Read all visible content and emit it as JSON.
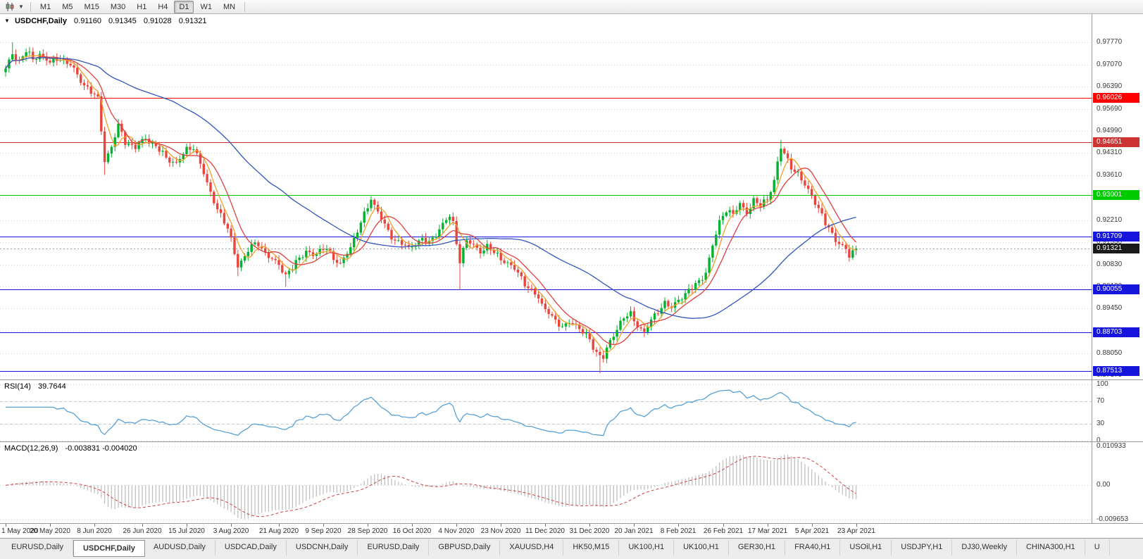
{
  "toolbar": {
    "timeframes": [
      "M1",
      "M5",
      "M15",
      "M30",
      "H1",
      "H4",
      "D1",
      "W1",
      "MN"
    ],
    "active_timeframe": "D1",
    "chart_menu_icon": "candlestick-chart-icon"
  },
  "chart": {
    "collapse_marker": "▼",
    "symbol_label": "USDCHF,Daily",
    "ohlc": {
      "open": "0.91160",
      "high": "0.91345",
      "low": "0.91028",
      "close": "0.91321"
    }
  },
  "rsi": {
    "label": "RSI(14)",
    "value": "39.7644",
    "period": 14,
    "levels": [
      100,
      70,
      30,
      0
    ]
  },
  "macd": {
    "label": "MACD(12,26,9)",
    "value": "-0.003831 -0.004020",
    "fast": 12,
    "slow": 26,
    "signal": 9,
    "scale_max": 0.010933,
    "scale_min": -0.009653,
    "scale_labels": [
      "0.010933",
      "0.00",
      "-0.009653"
    ]
  },
  "tabs": {
    "active_index": 1,
    "items": [
      "EURUSD,Daily",
      "USDCHF,Daily",
      "AUDUSD,Daily",
      "USDCAD,Daily",
      "USDCNH,Daily",
      "EURUSD,Daily",
      "GBPUSD,Daily",
      "XAUUSD,H4",
      "HK50,M15",
      "UK100,H1",
      "UK100,H1",
      "GER30,H1",
      "FRA40,H1",
      "USOil,H1",
      "USDJPY,H1",
      "DJ30,Weekly",
      "CHINA300,H1",
      "U"
    ]
  },
  "chart_data": {
    "type": "candlestick",
    "symbol": "USDCHF",
    "timeframe": "Daily",
    "candle_count": 250,
    "current_price": 0.91321,
    "current_price_label": "0.91321",
    "y_axis_ticks": [
      "0.97770",
      "0.97070",
      "0.96390",
      "0.95690",
      "0.94990",
      "0.94310",
      "0.93610",
      "0.92910",
      "0.92210",
      "0.91530",
      "0.90830",
      "0.90130",
      "0.89450",
      "0.88750",
      "0.88050",
      "0.87370"
    ],
    "horizontal_lines": [
      {
        "price": 0.96026,
        "label": "0.96026",
        "color": "#FF0000"
      },
      {
        "price": 0.94651,
        "label": "0.94651",
        "color": "#CD3333"
      },
      {
        "price": 0.93001,
        "label": "0.93001",
        "color": "#00CC00"
      },
      {
        "price": 0.91709,
        "label": "0.91709",
        "color": "#1515DD"
      },
      {
        "price": 0.90055,
        "label": "0.90055",
        "color": "#1515DD"
      },
      {
        "price": 0.88703,
        "label": "0.88703",
        "color": "#1515DD"
      },
      {
        "price": 0.87513,
        "label": "0.87513",
        "color": "#1515DD"
      }
    ],
    "x_labels": [
      {
        "i": 0,
        "label": "1 May 2020"
      },
      {
        "i": 13,
        "label": "20 May 2020"
      },
      {
        "i": 26,
        "label": "8 Jun 2020"
      },
      {
        "i": 40,
        "label": "26 Jun 2020"
      },
      {
        "i": 53,
        "label": "15 Jul 2020"
      },
      {
        "i": 66,
        "label": "3 Aug 2020"
      },
      {
        "i": 80,
        "label": "21 Aug 2020"
      },
      {
        "i": 93,
        "label": "9 Sep 2020"
      },
      {
        "i": 106,
        "label": "28 Sep 2020"
      },
      {
        "i": 119,
        "label": "16 Oct 2020"
      },
      {
        "i": 132,
        "label": "4 Nov 2020"
      },
      {
        "i": 145,
        "label": "23 Nov 2020"
      },
      {
        "i": 158,
        "label": "11 Dec 2020"
      },
      {
        "i": 171,
        "label": "31 Dec 2020"
      },
      {
        "i": 184,
        "label": "20 Jan 2021"
      },
      {
        "i": 197,
        "label": "8 Feb 2021"
      },
      {
        "i": 210,
        "label": "26 Feb 2021"
      },
      {
        "i": 223,
        "label": "17 Mar 2021"
      },
      {
        "i": 236,
        "label": "5 Apr 2021"
      },
      {
        "i": 249,
        "label": "23 Apr 2021"
      }
    ],
    "price_path": [
      [
        0,
        0.969
      ],
      [
        2,
        0.9742
      ],
      [
        4,
        0.9718
      ],
      [
        6,
        0.975
      ],
      [
        8,
        0.9722
      ],
      [
        10,
        0.9742
      ],
      [
        13,
        0.9712
      ],
      [
        16,
        0.973
      ],
      [
        19,
        0.9705
      ],
      [
        22,
        0.9658
      ],
      [
        25,
        0.9622
      ],
      [
        27,
        0.9598
      ],
      [
        28,
        0.9505
      ],
      [
        29,
        0.9408
      ],
      [
        31,
        0.945
      ],
      [
        33,
        0.9515
      ],
      [
        35,
        0.9468
      ],
      [
        38,
        0.9448
      ],
      [
        41,
        0.9478
      ],
      [
        44,
        0.9452
      ],
      [
        47,
        0.9415
      ],
      [
        50,
        0.94
      ],
      [
        53,
        0.944
      ],
      [
        55,
        0.9452
      ],
      [
        57,
        0.94
      ],
      [
        59,
        0.9332
      ],
      [
        61,
        0.9282
      ],
      [
        63,
        0.9238
      ],
      [
        65,
        0.9192
      ],
      [
        67,
        0.9122
      ],
      [
        68,
        0.908
      ],
      [
        70,
        0.9108
      ],
      [
        72,
        0.914
      ],
      [
        74,
        0.9152
      ],
      [
        76,
        0.9118
      ],
      [
        78,
        0.9096
      ],
      [
        80,
        0.9084
      ],
      [
        82,
        0.905
      ],
      [
        84,
        0.9072
      ],
      [
        86,
        0.9102
      ],
      [
        88,
        0.9128
      ],
      [
        90,
        0.911
      ],
      [
        92,
        0.9122
      ],
      [
        94,
        0.9142
      ],
      [
        96,
        0.9098
      ],
      [
        98,
        0.908
      ],
      [
        100,
        0.9124
      ],
      [
        102,
        0.916
      ],
      [
        104,
        0.9212
      ],
      [
        106,
        0.9265
      ],
      [
        107,
        0.9292
      ],
      [
        108,
        0.9268
      ],
      [
        110,
        0.9225
      ],
      [
        112,
        0.9185
      ],
      [
        114,
        0.916
      ],
      [
        116,
        0.9148
      ],
      [
        118,
        0.9132
      ],
      [
        120,
        0.915
      ],
      [
        122,
        0.9162
      ],
      [
        124,
        0.9148
      ],
      [
        126,
        0.918
      ],
      [
        128,
        0.921
      ],
      [
        130,
        0.9232
      ],
      [
        131,
        0.921
      ],
      [
        132,
        0.915
      ],
      [
        133,
        0.9098
      ],
      [
        134,
        0.913
      ],
      [
        135,
        0.9158
      ],
      [
        137,
        0.914
      ],
      [
        139,
        0.9125
      ],
      [
        141,
        0.914
      ],
      [
        143,
        0.9118
      ],
      [
        145,
        0.9102
      ],
      [
        147,
        0.9088
      ],
      [
        149,
        0.9068
      ],
      [
        151,
        0.904
      ],
      [
        153,
        0.9012
      ],
      [
        155,
        0.8992
      ],
      [
        157,
        0.8955
      ],
      [
        159,
        0.8938
      ],
      [
        161,
        0.8905
      ],
      [
        163,
        0.8882
      ],
      [
        165,
        0.891
      ],
      [
        167,
        0.8892
      ],
      [
        169,
        0.8868
      ],
      [
        171,
        0.8852
      ],
      [
        173,
        0.8805
      ],
      [
        175,
        0.879
      ],
      [
        177,
        0.8845
      ],
      [
        179,
        0.8885
      ],
      [
        181,
        0.8915
      ],
      [
        183,
        0.8928
      ],
      [
        185,
        0.8895
      ],
      [
        187,
        0.8868
      ],
      [
        189,
        0.8908
      ],
      [
        191,
        0.894
      ],
      [
        193,
        0.8962
      ],
      [
        195,
        0.8945
      ],
      [
        197,
        0.8975
      ],
      [
        199,
        0.8992
      ],
      [
        201,
        0.9008
      ],
      [
        203,
        0.903
      ],
      [
        205,
        0.906
      ],
      [
        207,
        0.914
      ],
      [
        209,
        0.9215
      ],
      [
        211,
        0.9258
      ],
      [
        213,
        0.9238
      ],
      [
        215,
        0.927
      ],
      [
        217,
        0.9248
      ],
      [
        219,
        0.9282
      ],
      [
        221,
        0.9265
      ],
      [
        223,
        0.929
      ],
      [
        225,
        0.9345
      ],
      [
        226,
        0.94
      ],
      [
        227,
        0.9445
      ],
      [
        228,
        0.9428
      ],
      [
        230,
        0.939
      ],
      [
        232,
        0.9365
      ],
      [
        234,
        0.9328
      ],
      [
        236,
        0.93
      ],
      [
        238,
        0.9258
      ],
      [
        240,
        0.921
      ],
      [
        242,
        0.9178
      ],
      [
        244,
        0.915
      ],
      [
        246,
        0.9128
      ],
      [
        247,
        0.9106
      ],
      [
        248,
        0.9122
      ],
      [
        249,
        0.91321
      ]
    ],
    "spikes": [
      {
        "i": 2,
        "high": 0.9777
      },
      {
        "i": 29,
        "low": 0.9363
      },
      {
        "i": 68,
        "low": 0.9046
      },
      {
        "i": 82,
        "low": 0.9013
      },
      {
        "i": 133,
        "low": 0.9004
      },
      {
        "i": 174,
        "low": 0.8743
      },
      {
        "i": 227,
        "high": 0.9472
      }
    ],
    "noise_amp": 0.0013,
    "overlays": [
      {
        "name": "ma-fast",
        "period": 5,
        "color": "#F0A028"
      },
      {
        "name": "ma-mid",
        "period": 10,
        "color": "#E04040"
      },
      {
        "name": "ma-slow",
        "period": 50,
        "color": "#3355BB"
      }
    ],
    "colors": {
      "up": "#00B22D",
      "down": "#E8453C",
      "grid": "#D4D4D4",
      "rsi_line": "#4C9BD6",
      "macd_hist": "#C0C0C0",
      "macd_signal": "#D04040",
      "current_line": "#9A9A9A",
      "current_box": "#1A1A1A"
    }
  }
}
